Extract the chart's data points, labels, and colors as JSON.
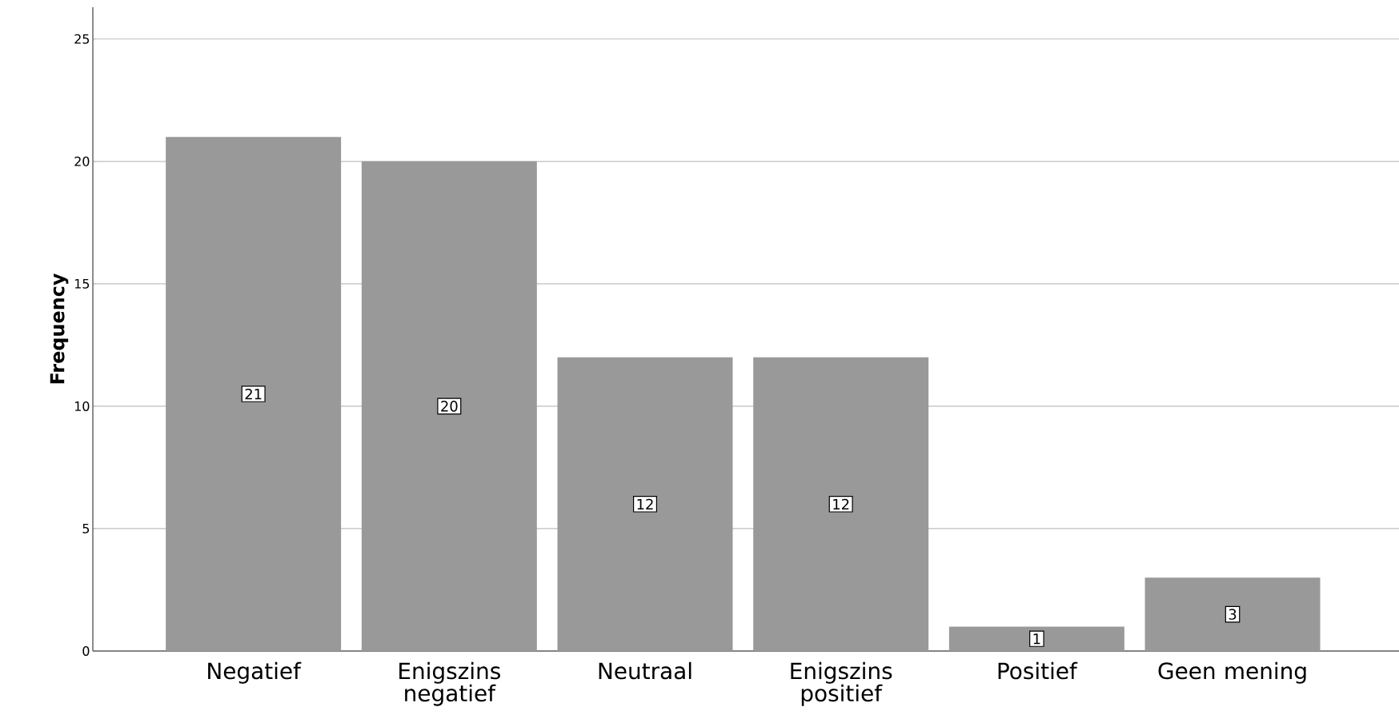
{
  "chart_data": {
    "type": "bar",
    "ylabel": "Frequency",
    "categories": [
      "Negatief",
      "Enigszins negatief",
      "Neutraal",
      "Enigszins positief",
      "Positief",
      "Geen mening"
    ],
    "values": [
      21,
      20,
      12,
      12,
      1,
      3
    ],
    "color": "#999999",
    "ylim": [
      0,
      26.3
    ],
    "yticks": [
      0,
      5,
      10,
      15,
      20,
      25
    ],
    "grid": "y",
    "data_labels": true
  }
}
